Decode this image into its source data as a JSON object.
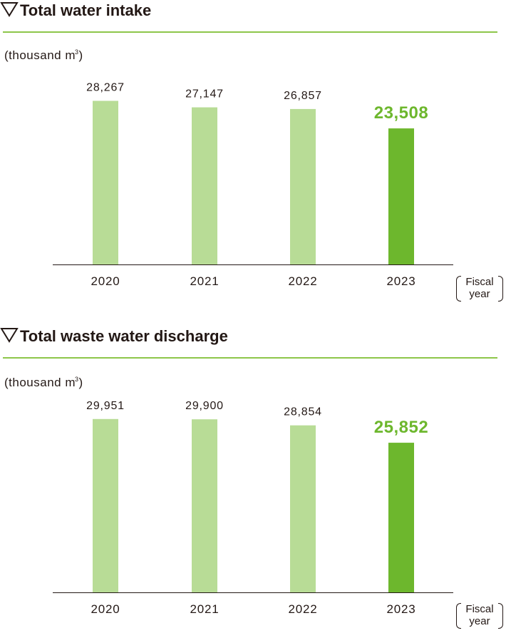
{
  "charts": [
    {
      "heading": "Total water intake",
      "unit_prefix": "(thousand m",
      "unit_sup": "3",
      "unit_suffix": ")",
      "fiscal_line1": "Fiscal",
      "fiscal_line2": "year"
    },
    {
      "heading": "Total waste water discharge",
      "unit_prefix": "(thousand m",
      "unit_sup": "3",
      "unit_suffix": ")",
      "fiscal_line1": "Fiscal",
      "fiscal_line2": "year"
    }
  ],
  "colors": {
    "bar_past": "#b8dc96",
    "bar_latest": "#6db72d",
    "latest_label": "#6db72d",
    "rule": "#8dc64a",
    "text": "#231815"
  },
  "chart_data": [
    {
      "type": "bar",
      "title": "Total water intake",
      "ylabel": "(thousand m3)",
      "xlabel": "Fiscal year",
      "categories": [
        "2020",
        "2021",
        "2022",
        "2023"
      ],
      "values": [
        28267,
        27147,
        26857,
        23508
      ],
      "value_labels": [
        "28,267",
        "27,147",
        "26,857",
        "23,508"
      ],
      "highlight_index": 3,
      "ylim": [
        0,
        35000
      ],
      "grid": false,
      "legend": "none"
    },
    {
      "type": "bar",
      "title": "Total waste water discharge",
      "ylabel": "(thousand m3)",
      "xlabel": "Fiscal year",
      "categories": [
        "2020",
        "2021",
        "2022",
        "2023"
      ],
      "values": [
        29951,
        29900,
        28854,
        25852
      ],
      "value_labels": [
        "29,951",
        "29,900",
        "28,854",
        "25,852"
      ],
      "highlight_index": 3,
      "ylim": [
        0,
        35000
      ],
      "grid": false,
      "legend": "none"
    }
  ]
}
